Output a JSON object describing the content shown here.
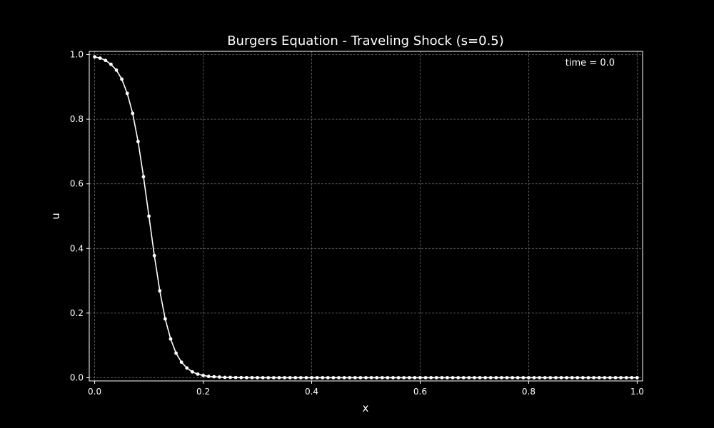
{
  "chart_data": {
    "type": "line",
    "title": "Burgers Equation - Traveling Shock (s=0.5)",
    "xlabel": "x",
    "ylabel": "u",
    "annotation": "time = 0.0",
    "xlim": [
      -0.01,
      1.01
    ],
    "ylim": [
      -0.01,
      1.01
    ],
    "xticks": [
      0.0,
      0.2,
      0.4,
      0.6,
      0.8,
      1.0
    ],
    "xtick_labels": [
      "0.0",
      "0.2",
      "0.4",
      "0.6",
      "0.8",
      "1.0"
    ],
    "yticks": [
      0.0,
      0.2,
      0.4,
      0.6,
      0.8,
      1.0
    ],
    "ytick_labels": [
      "0.0",
      "0.2",
      "0.4",
      "0.6",
      "0.8",
      "1.0"
    ],
    "grid": true,
    "legend": "none",
    "colors": {
      "background": "#000000",
      "foreground": "#ffffff",
      "grid": "#666666"
    },
    "series": [
      {
        "x": [
          0.0,
          0.01,
          0.02,
          0.03,
          0.04,
          0.05,
          0.06,
          0.07,
          0.08,
          0.09,
          0.1,
          0.11,
          0.12,
          0.13,
          0.14,
          0.15,
          0.16,
          0.17,
          0.18,
          0.19,
          0.2,
          0.21,
          0.22,
          0.23,
          0.24,
          0.25,
          0.26,
          0.27,
          0.28,
          0.29,
          0.3,
          0.31,
          0.32,
          0.33,
          0.34,
          0.35,
          0.36,
          0.37,
          0.38,
          0.39,
          0.4,
          0.41,
          0.42,
          0.43,
          0.44,
          0.45,
          0.46,
          0.47,
          0.48,
          0.49,
          0.5,
          0.51,
          0.52,
          0.53,
          0.54,
          0.55,
          0.56,
          0.57,
          0.58,
          0.59,
          0.6,
          0.61,
          0.62,
          0.63,
          0.64,
          0.65,
          0.66,
          0.67,
          0.68,
          0.69,
          0.7,
          0.71,
          0.72,
          0.73,
          0.74,
          0.75,
          0.76,
          0.77,
          0.78,
          0.79,
          0.8,
          0.81,
          0.82,
          0.83,
          0.84,
          0.85,
          0.86,
          0.87,
          0.88,
          0.89,
          0.9,
          0.91,
          0.92,
          0.93,
          0.94,
          0.95,
          0.96,
          0.97,
          0.98,
          0.99,
          1.0
        ],
        "values": [
          0.993,
          0.989,
          0.982,
          0.97,
          0.952,
          0.924,
          0.88,
          0.818,
          0.731,
          0.622,
          0.5,
          0.378,
          0.269,
          0.182,
          0.12,
          0.076,
          0.048,
          0.03,
          0.018,
          0.011,
          0.007,
          0.004,
          0.003,
          0.002,
          0.001,
          0.001,
          0.0005,
          0.0003,
          0.0002,
          0.0001,
          0.0001,
          0.0,
          0.0,
          0.0,
          0.0,
          0.0,
          0.0,
          0.0,
          0.0,
          0.0,
          0.0,
          0.0,
          0.0,
          0.0,
          0.0,
          0.0,
          0.0,
          0.0,
          0.0,
          0.0,
          0.0,
          0.0,
          0.0,
          0.0,
          0.0,
          0.0,
          0.0,
          0.0,
          0.0,
          0.0,
          0.0,
          0.0,
          0.0,
          0.0,
          0.0,
          0.0,
          0.0,
          0.0,
          0.0,
          0.0,
          0.0,
          0.0,
          0.0,
          0.0,
          0.0,
          0.0,
          0.0,
          0.0,
          0.0,
          0.0,
          0.0,
          0.0,
          0.0,
          0.0,
          0.0,
          0.0,
          0.0,
          0.0,
          0.0,
          0.0,
          0.0,
          0.0,
          0.0,
          0.0,
          0.0,
          0.0,
          0.0,
          0.0,
          0.0,
          0.0,
          0.0
        ]
      }
    ]
  }
}
